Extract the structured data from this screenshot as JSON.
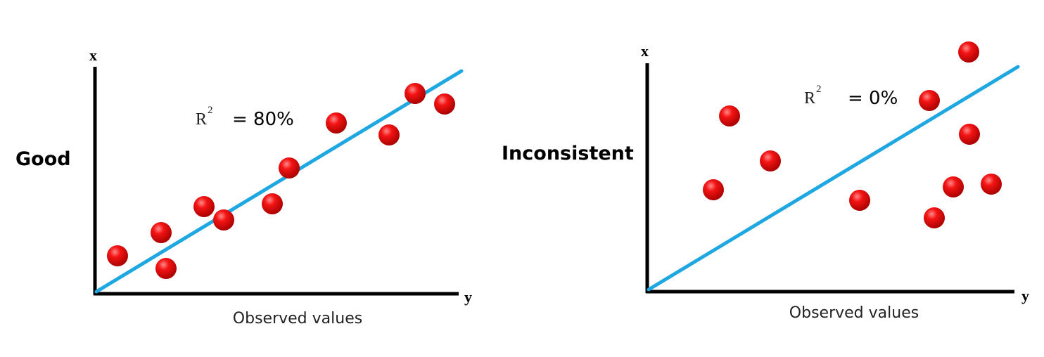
{
  "panels": [
    {
      "label": "Good",
      "axis_top": "x",
      "axis_right": "y",
      "r_symbol": "R",
      "r_exponent": "2",
      "r_value": "= 80%",
      "caption": "Observed values"
    },
    {
      "label": "Inconsistent",
      "axis_top": "x",
      "axis_right": "y",
      "r_symbol": "R",
      "r_exponent": "2",
      "r_value": "= 0%",
      "caption": "Observed values"
    }
  ]
}
